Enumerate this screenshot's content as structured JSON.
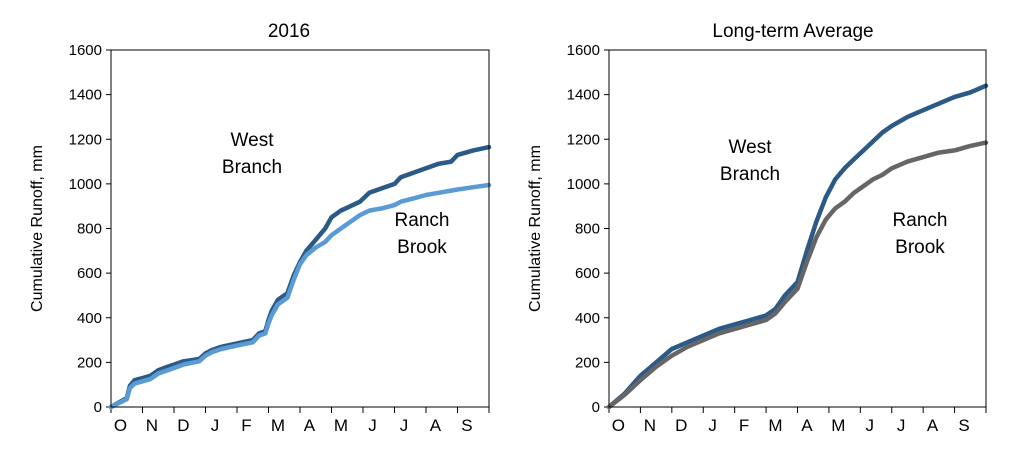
{
  "chart_data": [
    {
      "type": "line",
      "title": "2016",
      "xlabel": "",
      "ylabel": "Cumulative Runoff, mm",
      "ylim": [
        0,
        1600
      ],
      "yticks": [
        0,
        200,
        400,
        600,
        800,
        1000,
        1200,
        1400,
        1600
      ],
      "x_unit": "months since Oct 1",
      "xlim": [
        0,
        12
      ],
      "month_labels": [
        "O",
        "N",
        "D",
        "J",
        "F",
        "M",
        "A",
        "M",
        "J",
        "J",
        "A",
        "S"
      ],
      "annotations": [
        {
          "lines": [
            "West",
            "Branch"
          ],
          "series": "West Branch"
        },
        {
          "lines": [
            "Ranch",
            "Brook"
          ],
          "series": "Ranch Brook"
        }
      ],
      "series": [
        {
          "name": "West Branch",
          "color": "#2a5a85",
          "x": [
            0,
            0.25,
            0.5,
            0.6,
            0.75,
            1.0,
            1.25,
            1.5,
            1.8,
            2.0,
            2.3,
            2.8,
            3.0,
            3.2,
            3.5,
            4.0,
            4.5,
            4.7,
            4.9,
            5.0,
            5.1,
            5.3,
            5.6,
            5.8,
            6.0,
            6.2,
            6.5,
            6.8,
            7.0,
            7.3,
            7.6,
            7.9,
            8.2,
            8.6,
            9.0,
            9.2,
            9.6,
            10.0,
            10.4,
            10.8,
            11.0,
            11.5,
            12.0
          ],
          "values": [
            0,
            20,
            40,
            95,
            120,
            130,
            140,
            165,
            180,
            190,
            205,
            215,
            240,
            255,
            270,
            285,
            300,
            330,
            340,
            390,
            430,
            480,
            510,
            590,
            650,
            700,
            750,
            800,
            850,
            880,
            900,
            920,
            960,
            980,
            1000,
            1030,
            1050,
            1070,
            1090,
            1100,
            1130,
            1150,
            1165
          ]
        },
        {
          "name": "Ranch Brook",
          "color": "#5b9bd5",
          "x": [
            0,
            0.25,
            0.5,
            0.6,
            0.75,
            1.0,
            1.25,
            1.5,
            1.8,
            2.0,
            2.3,
            2.8,
            3.0,
            3.2,
            3.5,
            4.0,
            4.5,
            4.7,
            4.9,
            5.0,
            5.1,
            5.3,
            5.6,
            5.8,
            6.0,
            6.2,
            6.5,
            6.8,
            7.0,
            7.3,
            7.6,
            7.9,
            8.2,
            8.6,
            9.0,
            9.2,
            9.6,
            10.0,
            10.4,
            10.8,
            11.0,
            11.5,
            12.0
          ],
          "values": [
            0,
            18,
            35,
            85,
            105,
            115,
            125,
            150,
            165,
            175,
            190,
            205,
            230,
            245,
            260,
            275,
            290,
            320,
            330,
            375,
            410,
            460,
            490,
            570,
            640,
            680,
            715,
            740,
            770,
            800,
            830,
            860,
            880,
            890,
            905,
            920,
            935,
            950,
            960,
            970,
            975,
            985,
            995
          ]
        }
      ]
    },
    {
      "type": "line",
      "title": "Long-term Average",
      "xlabel": "",
      "ylabel": "Cumulative Runoff, mm",
      "ylim": [
        0,
        1600
      ],
      "yticks": [
        0,
        200,
        400,
        600,
        800,
        1000,
        1200,
        1400,
        1600
      ],
      "x_unit": "months since Oct 1",
      "xlim": [
        0,
        12
      ],
      "month_labels": [
        "O",
        "N",
        "D",
        "J",
        "F",
        "M",
        "A",
        "M",
        "J",
        "J",
        "A",
        "S"
      ],
      "annotations": [
        {
          "lines": [
            "West",
            "Branch"
          ],
          "series": "West Branch"
        },
        {
          "lines": [
            "Ranch",
            "Brook"
          ],
          "series": "Ranch Brook"
        }
      ],
      "series": [
        {
          "name": "West Branch",
          "color": "#2a5a85",
          "x": [
            0,
            0.5,
            1.0,
            1.5,
            2.0,
            2.5,
            3.0,
            3.5,
            4.0,
            4.5,
            5.0,
            5.3,
            5.6,
            6.0,
            6.3,
            6.6,
            6.9,
            7.2,
            7.5,
            7.8,
            8.1,
            8.4,
            8.7,
            9.0,
            9.5,
            10.0,
            10.5,
            11.0,
            11.5,
            12.0
          ],
          "values": [
            0,
            60,
            140,
            200,
            260,
            290,
            320,
            350,
            370,
            390,
            410,
            440,
            500,
            560,
            700,
            830,
            940,
            1020,
            1070,
            1110,
            1150,
            1190,
            1230,
            1260,
            1300,
            1330,
            1360,
            1390,
            1410,
            1440
          ]
        },
        {
          "name": "Ranch Brook",
          "color": "#666666",
          "x": [
            0,
            0.5,
            1.0,
            1.5,
            2.0,
            2.5,
            3.0,
            3.5,
            4.0,
            4.5,
            5.0,
            5.3,
            5.6,
            6.0,
            6.3,
            6.6,
            6.9,
            7.2,
            7.5,
            7.8,
            8.1,
            8.4,
            8.7,
            9.0,
            9.5,
            10.0,
            10.5,
            11.0,
            11.5,
            12.0
          ],
          "values": [
            0,
            55,
            120,
            180,
            230,
            270,
            300,
            330,
            350,
            370,
            390,
            420,
            470,
            530,
            650,
            760,
            840,
            890,
            920,
            960,
            990,
            1020,
            1040,
            1070,
            1100,
            1120,
            1140,
            1150,
            1170,
            1185
          ]
        }
      ]
    }
  ]
}
